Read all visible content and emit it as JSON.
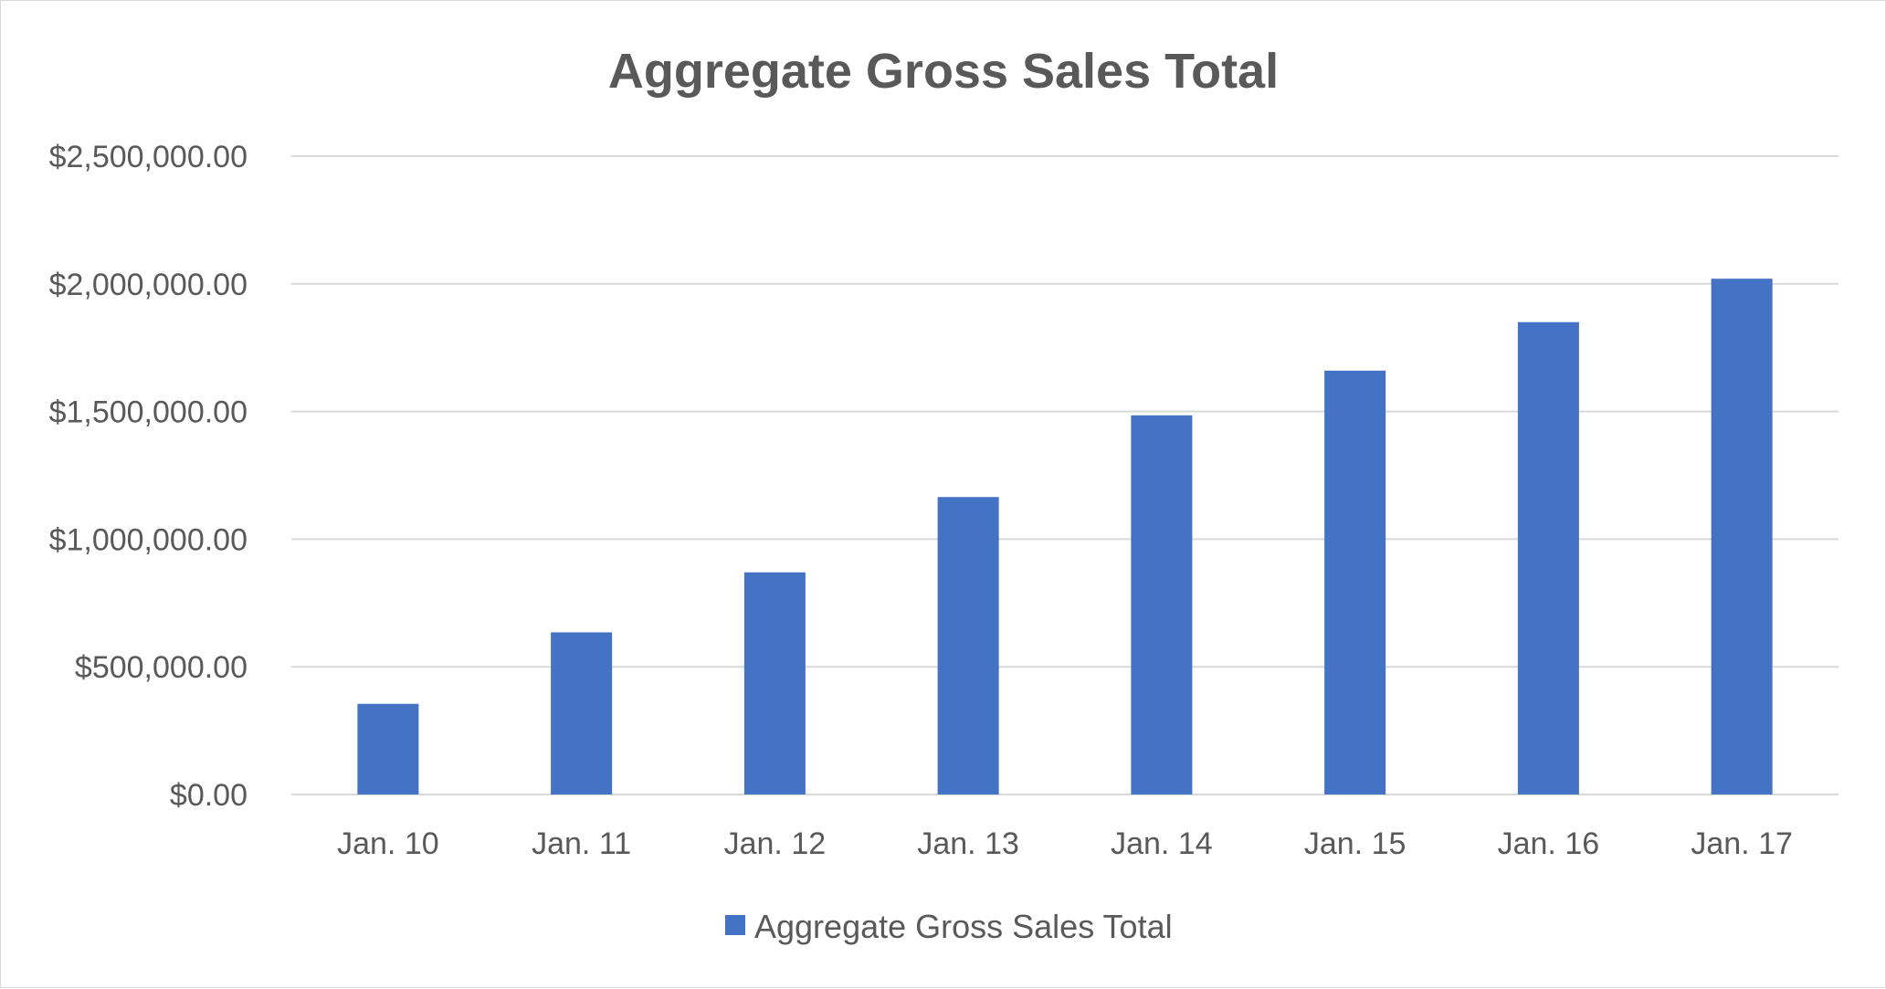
{
  "chart_data": {
    "type": "bar",
    "title": "Aggregate Gross Sales Total",
    "xlabel": "",
    "ylabel": "",
    "categories": [
      "Jan. 10",
      "Jan. 11",
      "Jan. 12",
      "Jan. 13",
      "Jan. 14",
      "Jan. 15",
      "Jan. 16",
      "Jan. 17"
    ],
    "series": [
      {
        "name": "Aggregate Gross Sales Total",
        "values": [
          355000,
          635000,
          870000,
          1165000,
          1485000,
          1660000,
          1850000,
          2020000
        ],
        "color": "#4472c4"
      }
    ],
    "ylim": [
      0,
      2500000
    ],
    "yticks": [
      0,
      500000,
      1000000,
      1500000,
      2000000,
      2500000
    ],
    "ytick_labels": [
      "$0.00",
      "$500,000.00",
      "$1,000,000.00",
      "$1,500,000.00",
      "$2,000,000.00",
      "$2,500,000.00"
    ],
    "grid": true,
    "legend_position": "bottom",
    "colors": {
      "text": "#595959",
      "grid": "#d9d9d9",
      "bar": "#4472c4"
    }
  }
}
